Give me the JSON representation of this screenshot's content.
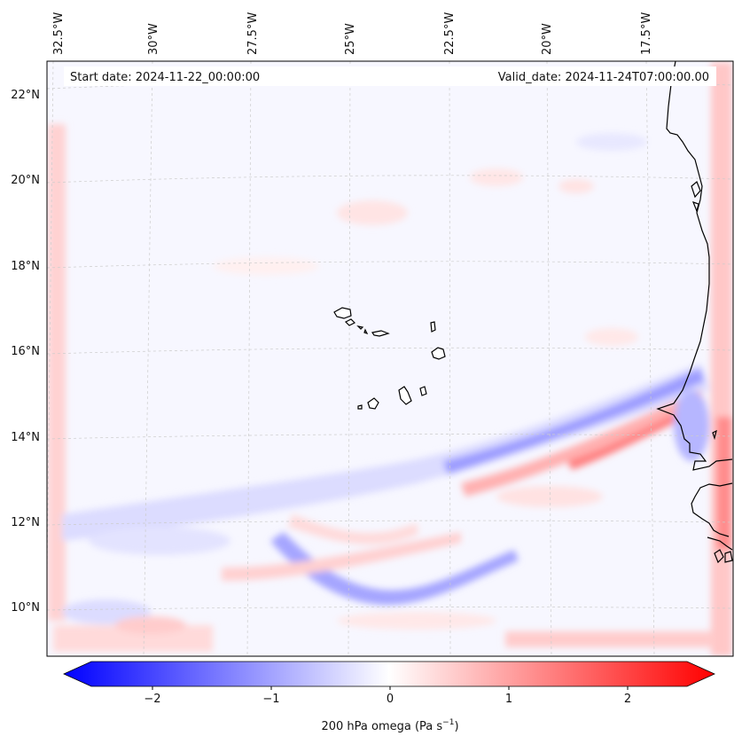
{
  "header": {
    "start_date": "Start date: 2024-11-22_00:00:00",
    "valid_date": "Valid_date: 2024-11-24T07:00:00.00"
  },
  "axes": {
    "longitude_labels": [
      "32.5°W",
      "30°W",
      "27.5°W",
      "25°W",
      "22.5°W",
      "20°W",
      "17.5°W"
    ],
    "latitude_labels": [
      "22°N",
      "20°N",
      "18°N",
      "16°N",
      "14°N",
      "12°N",
      "10°N"
    ]
  },
  "colorbar": {
    "tick_labels": [
      "−2",
      "−1",
      "0",
      "1",
      "2"
    ],
    "title": "200 hPa omega (Pa s",
    "title_sup": "−1",
    "title_end": ")",
    "min_color": "#0000ff",
    "mid_color": "#ffffff",
    "max_color": "#ff0000"
  },
  "chart_data": {
    "type": "heatmap",
    "variable": "200 hPa omega",
    "units": "Pa s−1",
    "value_range": [
      -2.6,
      2.6
    ],
    "ticks": [
      -2,
      -1,
      0,
      1,
      2
    ],
    "lon_range_deg": [
      -33,
      -15.5
    ],
    "lat_range_deg": [
      9,
      22.8
    ]
  }
}
